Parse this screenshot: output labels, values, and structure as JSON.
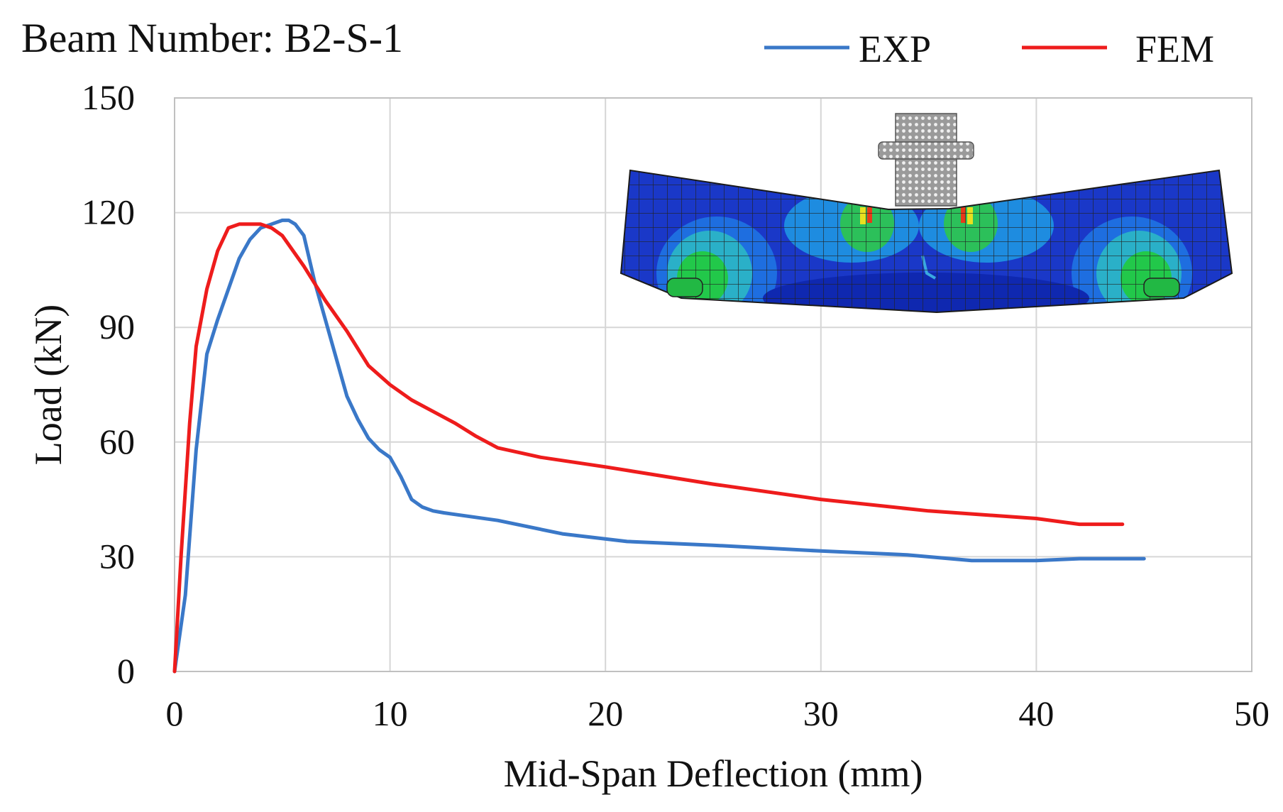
{
  "chart_data": {
    "type": "line",
    "title": "Beam Number: B2-S-1",
    "xlabel": "Mid-Span Deflection (mm)",
    "ylabel": "Load (kN)",
    "xlim": [
      0,
      50
    ],
    "ylim": [
      0,
      150
    ],
    "xticks": [
      0,
      10,
      20,
      30,
      40,
      50
    ],
    "yticks": [
      0,
      30,
      60,
      90,
      120,
      150
    ],
    "grid": true,
    "legend_position": "top-right",
    "series": [
      {
        "name": "EXP",
        "color": "#3a78c8",
        "x": [
          0,
          0.5,
          1.0,
          1.5,
          2.0,
          2.5,
          3.0,
          3.5,
          4.0,
          4.5,
          5.0,
          5.3,
          5.6,
          6.0,
          6.5,
          7.0,
          7.5,
          8.0,
          8.5,
          9.0,
          9.5,
          10.0,
          10.5,
          11.0,
          11.5,
          12.0,
          12.5,
          15.0,
          18.0,
          21.0,
          25.0,
          30.0,
          34.0,
          37.0,
          40.0,
          42.0,
          44.0,
          45.0
        ],
        "y": [
          0,
          20,
          58,
          83,
          92,
          100,
          108,
          113,
          116,
          117,
          118,
          118,
          117,
          114,
          102,
          92,
          82,
          72,
          66,
          61,
          58,
          56,
          51,
          45,
          43,
          42,
          41.5,
          39.5,
          36,
          34,
          33,
          31.5,
          30.5,
          29,
          29,
          29.5,
          29.5,
          29.5
        ]
      },
      {
        "name": "FEM",
        "color": "#ee1c1c",
        "x": [
          0,
          0.3,
          0.7,
          1.0,
          1.5,
          2.0,
          2.5,
          3.0,
          3.5,
          4.0,
          4.5,
          5.0,
          6.0,
          7.0,
          8.0,
          9.0,
          10.0,
          11.0,
          12.0,
          13.0,
          14.0,
          15.0,
          17.0,
          20.0,
          25.0,
          30.0,
          35.0,
          40.0,
          42.0,
          43.0,
          44.0
        ],
        "y": [
          0,
          30,
          65,
          85,
          100,
          110,
          116,
          117,
          117,
          117,
          116,
          114,
          106,
          97,
          89,
          80,
          75,
          71,
          68,
          65,
          61.5,
          58.5,
          56,
          53.5,
          49,
          45,
          42,
          40,
          38.5,
          38.5,
          38.5
        ]
      }
    ]
  }
}
